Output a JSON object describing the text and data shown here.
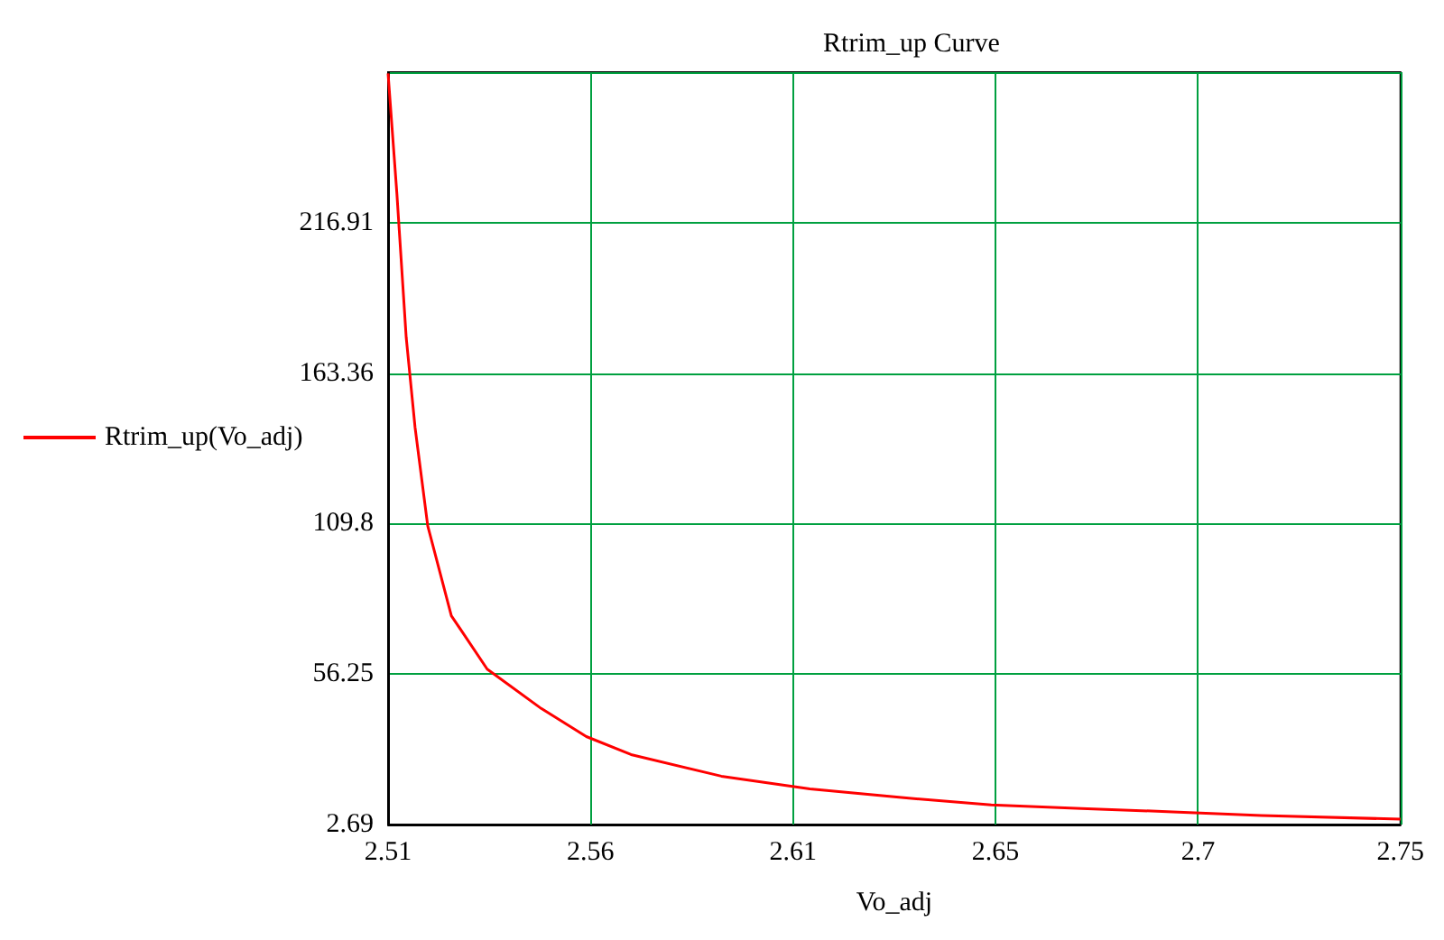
{
  "chart_data": {
    "type": "line",
    "title": "Rtrim_up Curve",
    "xlabel": "Vo_adj",
    "legend": "left",
    "grid": true,
    "marker": "none",
    "line_style": "solid",
    "xlim": [
      2.51,
      2.75
    ],
    "xticks": [
      2.51,
      {
        "value": 2.558,
        "label": "2.56"
      },
      {
        "value": 2.606,
        "label": "2.61"
      },
      {
        "value": 2.654,
        "label": "2.65"
      },
      {
        "value": 2.702,
        "label": "2.7"
      },
      2.75
    ],
    "ylim": [
      2.69,
      270.47
    ],
    "yticks": [
      2.69,
      56.25,
      109.8,
      163.36,
      216.91,
      {
        "value": 270.47,
        "label": null
      }
    ],
    "series": [
      {
        "name": "Rtrim_up(Vo_adj)",
        "color": "#ff0000",
        "x": [
          2.51,
          2.5121,
          2.5143,
          2.5164,
          2.5194,
          2.525,
          2.5335,
          2.5463,
          2.557,
          2.5676,
          2.589,
          2.61,
          2.6317,
          2.653,
          2.6744,
          2.696,
          2.717,
          2.75
        ],
        "values": [
          270,
          227,
          176,
          144,
          109,
          77,
          58,
          44,
          34,
          27.6,
          19.9,
          15.4,
          12.3,
          9.7,
          8.4,
          7.2,
          5.9,
          4.6
        ]
      }
    ]
  }
}
